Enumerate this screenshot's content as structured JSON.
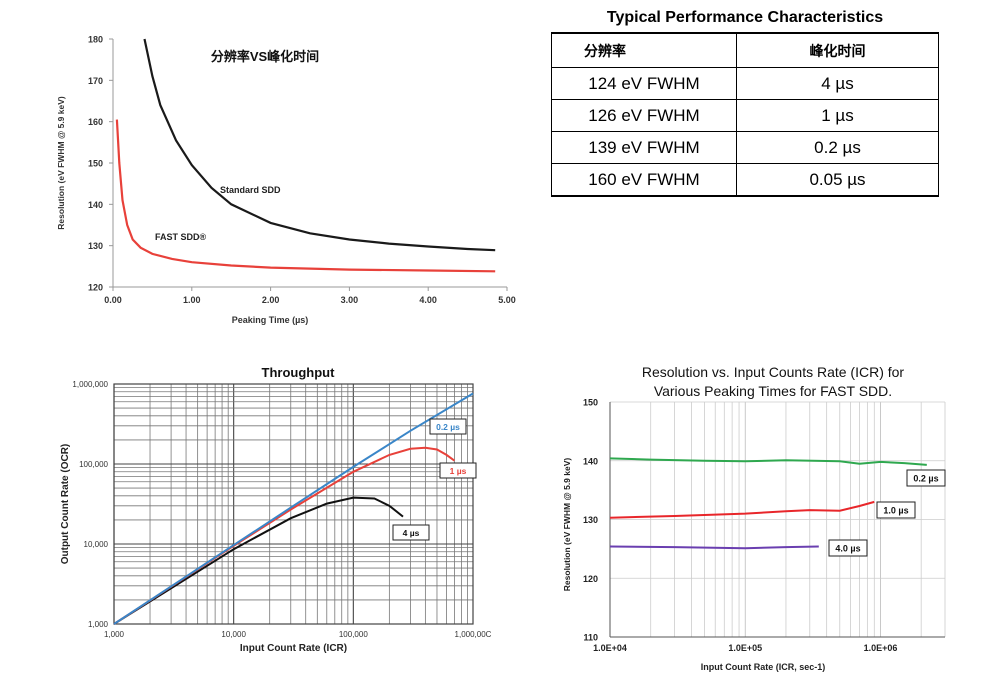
{
  "table": {
    "title": "Typical Performance Characteristics",
    "headers": [
      "分辨率",
      "峰化时间"
    ],
    "rows": [
      [
        "124 eV FWHM",
        "4 µs"
      ],
      [
        "126 eV FWHM",
        "1 µs"
      ],
      [
        "139 eV FWHM",
        "0.2 µs"
      ],
      [
        "160 eV FWHM",
        "0.05 µs"
      ]
    ]
  },
  "chart_data": [
    {
      "id": "resolution_vs_peaking",
      "type": "line",
      "title": "分辨率VS峰化时间",
      "xlabel": "Peaking Time (µs)",
      "ylabel": "Resolution (eV FWHM @ 5.9 keV)",
      "xlim": [
        0,
        5
      ],
      "ylim": [
        120,
        180
      ],
      "xticks": [
        "0.00",
        "1.00",
        "2.00",
        "3.00",
        "4.00",
        "5.00"
      ],
      "yticks": [
        "120",
        "130",
        "140",
        "150",
        "160",
        "170",
        "180"
      ],
      "grid": false,
      "series": [
        {
          "name": "Standard SDD",
          "color": "#1a1a1a",
          "x": [
            0.4,
            0.5,
            0.6,
            0.8,
            1.0,
            1.25,
            1.5,
            2.0,
            2.5,
            3.0,
            3.5,
            4.0,
            4.5,
            4.85
          ],
          "y": [
            180,
            171,
            164,
            155.5,
            149.5,
            144,
            140,
            135.5,
            133,
            131.5,
            130.5,
            129.8,
            129.2,
            128.9
          ]
        },
        {
          "name": "FAST SDD®",
          "color": "#e8413a",
          "x": [
            0.05,
            0.08,
            0.12,
            0.18,
            0.25,
            0.35,
            0.5,
            0.75,
            1.0,
            1.5,
            2.0,
            3.0,
            4.0,
            4.85
          ],
          "y": [
            160.5,
            150,
            141,
            135,
            131.5,
            129.5,
            128,
            126.8,
            126,
            125.2,
            124.7,
            124.2,
            124,
            123.8
          ]
        }
      ]
    },
    {
      "id": "throughput",
      "type": "line",
      "title": "Throughput",
      "xlabel": "Input Count Rate (ICR)",
      "ylabel": "Output Count Rate (OCR)",
      "xscale": "log",
      "yscale": "log",
      "xlim": [
        1000,
        1000000
      ],
      "ylim": [
        1000,
        1000000
      ],
      "xticks": [
        "1,000",
        "10,000",
        "100,000",
        "1,000,00C"
      ],
      "yticks": [
        "1,000",
        "10,000",
        "100,000",
        "1,000,000"
      ],
      "grid": true,
      "series": [
        {
          "name": "0.2 µs",
          "color": "#3a86c8",
          "x": [
            1000,
            3000,
            10000,
            30000,
            100000,
            300000,
            1000000
          ],
          "y": [
            1000,
            2950,
            9700,
            28500,
            92000,
            260000,
            760000
          ]
        },
        {
          "name": "1 µs",
          "color": "#e8413a",
          "x": [
            1000,
            10000,
            30000,
            100000,
            200000,
            300000,
            400000,
            500000,
            600000,
            700000
          ],
          "y": [
            1000,
            9500,
            27000,
            80000,
            130000,
            155000,
            160000,
            152000,
            130000,
            110000
          ]
        },
        {
          "name": "4 µs",
          "color": "#111111",
          "x": [
            1000,
            10000,
            30000,
            60000,
            100000,
            150000,
            200000,
            260000
          ],
          "y": [
            1000,
            8600,
            21000,
            32000,
            38000,
            37000,
            30000,
            22000
          ]
        }
      ]
    },
    {
      "id": "resolution_vs_icr",
      "type": "line",
      "title": "Resolution vs. Input Counts Rate (ICR) for Various Peaking Times for FAST SDD.",
      "title_lines": [
        "Resolution vs. Input Counts Rate (ICR) for",
        "Various Peaking Times for FAST SDD."
      ],
      "xlabel": "Input Count Rate (ICR, sec-1)",
      "ylabel": "Resolution (eV FWHM @ 5.9 keV)",
      "xscale": "log",
      "xlim": [
        10000,
        3000000
      ],
      "ylim": [
        110,
        150
      ],
      "xticks": [
        "1.0E+04",
        "1.0E+05",
        "1.0E+06"
      ],
      "yticks": [
        "110",
        "120",
        "130",
        "140",
        "150"
      ],
      "grid": true,
      "series": [
        {
          "name": "0.2 µs",
          "color": "#2fa84f",
          "x": [
            10000,
            20000,
            50000,
            100000,
            200000,
            500000,
            700000,
            1000000,
            1500000,
            2200000
          ],
          "y": [
            140.4,
            140.2,
            140.0,
            139.9,
            140.1,
            139.9,
            139.5,
            139.8,
            139.6,
            139.3
          ]
        },
        {
          "name": "1.0 µs",
          "color": "#e8262a",
          "x": [
            10000,
            30000,
            100000,
            200000,
            300000,
            500000,
            700000,
            900000
          ],
          "y": [
            130.3,
            130.6,
            131.0,
            131.4,
            131.6,
            131.5,
            132.3,
            133.0
          ]
        },
        {
          "name": "4.0 µs",
          "color": "#6a3fb0",
          "x": [
            10000,
            30000,
            100000,
            200000,
            350000
          ],
          "y": [
            125.4,
            125.3,
            125.1,
            125.3,
            125.4
          ]
        }
      ]
    }
  ]
}
